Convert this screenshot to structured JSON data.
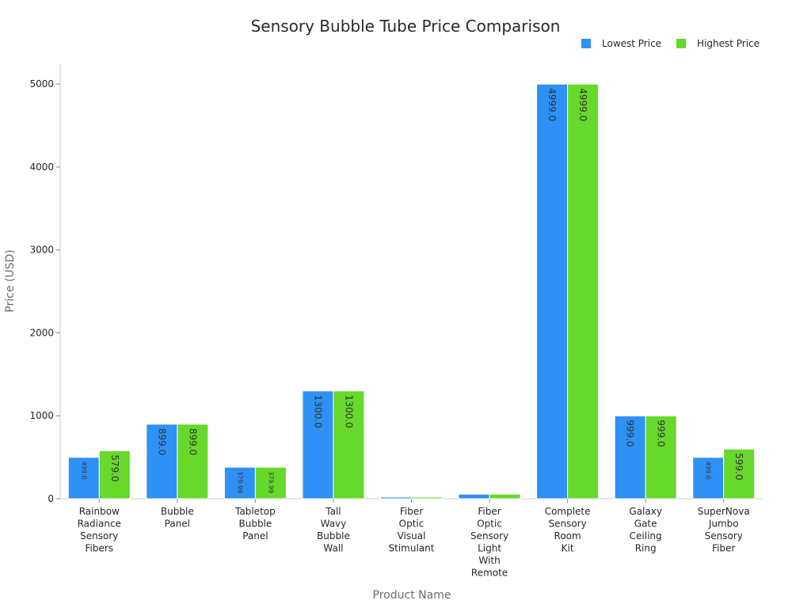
{
  "chart_data": {
    "type": "bar",
    "title": "Sensory Bubble Tube Price Comparison",
    "xlabel": "Product Name",
    "ylabel": "Price (USD)",
    "ylim": [
      0,
      5250
    ],
    "yticks": [
      0,
      1000,
      2000,
      3000,
      4000,
      5000
    ],
    "grid": false,
    "legend_position": "top-right",
    "categories": [
      "Rainbow Radiance Sensory Fibers",
      "Bubble Panel",
      "Tabletop Bubble Panel",
      "Tall Wavy Bubble Wall",
      "Fiber Optic Visual Stimulant",
      "Fiber Optic Sensory Light With Remote",
      "Complete Sensory Room Kit",
      "Galaxy Gate Ceiling Ring",
      "SuperNova Jumbo Sensory Fiber"
    ],
    "series": [
      {
        "name": "Lowest Price",
        "color": "#2e91f5",
        "values": [
          499.0,
          899.0,
          379.99,
          1300.0,
          20.0,
          55.0,
          4999.0,
          999.0,
          499.0
        ],
        "labels": [
          "499.0",
          "899.0",
          "379.99",
          "1300.0",
          "",
          "",
          "4999.0",
          "999.0",
          "499.0"
        ]
      },
      {
        "name": "Highest Price",
        "color": "#66d92b",
        "values": [
          579.0,
          899.0,
          379.99,
          1300.0,
          20.0,
          55.0,
          4999.0,
          999.0,
          599.0
        ],
        "labels": [
          "579.0",
          "899.0",
          "379.99",
          "1300.0",
          "",
          "",
          "4999.0",
          "999.0",
          "599.0"
        ]
      }
    ]
  }
}
